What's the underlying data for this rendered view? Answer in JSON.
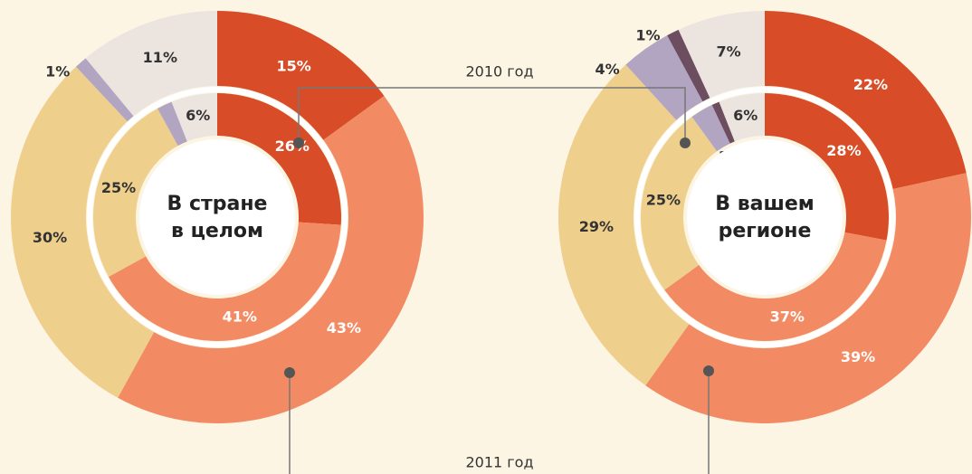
{
  "chart_data": [
    {
      "type": "donut",
      "title": [
        "В стране",
        "в целом"
      ],
      "colors": [
        "#d84d27",
        "#f28b63",
        "#eecf8c",
        "#b2a5c2",
        "#ece4df"
      ],
      "series": [
        {
          "values": [
            26,
            41,
            25,
            2,
            6
          ],
          "value_labels": [
            "26%",
            "41%",
            "25%",
            "2%",
            "6%"
          ]
        },
        {
          "values": [
            15,
            43,
            30,
            1,
            11
          ],
          "value_labels": [
            "15%",
            "43%",
            "30%",
            "1%",
            "11%"
          ]
        }
      ]
    },
    {
      "type": "donut",
      "title": [
        "В вашем",
        "регионе"
      ],
      "colors": [
        "#d84d27",
        "#f28b63",
        "#eecf8c",
        "#b2a5c2",
        "#6d4d60",
        "#ece4df"
      ],
      "series": [
        {
          "values": [
            28,
            37,
            25,
            3,
            1,
            6
          ],
          "value_labels": [
            "28%",
            "37%",
            "25%",
            "3%",
            "1%",
            "6%"
          ]
        },
        {
          "values": [
            22,
            39,
            29,
            4,
            1,
            7
          ],
          "value_labels": [
            "22%",
            "39%",
            "29%",
            "4%",
            "1%",
            "7%"
          ]
        }
      ]
    }
  ],
  "ring_labels": {
    "inner": "2010 год",
    "outer": "2011 год"
  }
}
